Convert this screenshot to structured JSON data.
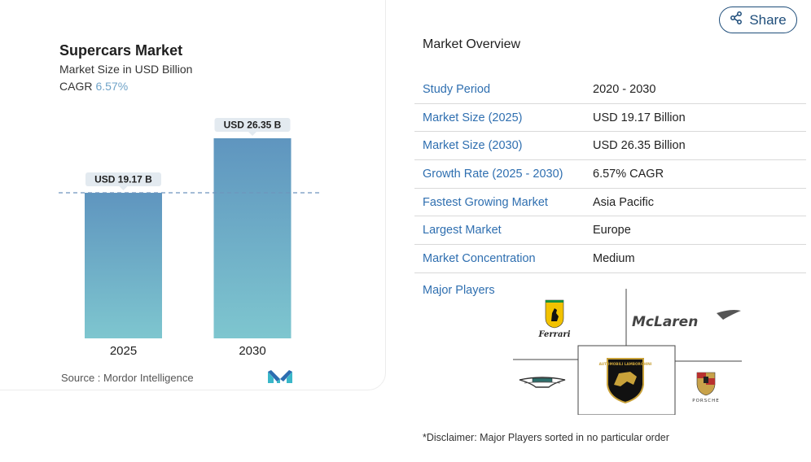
{
  "chart_data": {
    "type": "bar",
    "title": "Supercars Market",
    "subtitle": "Market Size in USD Billion",
    "cagr_label": "CAGR",
    "cagr_value": "6.57%",
    "categories": [
      "2025",
      "2030"
    ],
    "values": [
      19.17,
      26.35
    ],
    "data_labels": [
      "USD 19.17 B",
      "USD 26.35 B"
    ],
    "ylim": [
      0,
      26.35
    ],
    "reference_line_value": 19.17,
    "grid": false,
    "bar_gradient": [
      "#5f95bf",
      "#7ec6cf"
    ],
    "source": "Source :  Mordor Intelligence"
  },
  "share": {
    "label": "Share",
    "icon": "share-icon",
    "color": "#1e4d7a"
  },
  "overview": {
    "title": "Market Overview",
    "rows": [
      {
        "label": "Study Period",
        "value": "2020 - 2030"
      },
      {
        "label": "Market Size (2025)",
        "value": "USD 19.17 Billion"
      },
      {
        "label": "Market Size (2030)",
        "value": "USD 26.35 Billion"
      },
      {
        "label": "Growth Rate (2025 - 2030)",
        "value": "6.57% CAGR"
      },
      {
        "label": "Fastest Growing Market",
        "value": "Asia Pacific"
      },
      {
        "label": "Largest Market",
        "value": "Europe"
      },
      {
        "label": "Market Concentration",
        "value": "Medium"
      }
    ],
    "label_color": "#2f6fb0"
  },
  "major_players": {
    "title": "Major Players",
    "logos": [
      "ferrari-logo",
      "mclaren-logo",
      "aston-martin-logo",
      "lamborghini-logo",
      "porsche-logo"
    ],
    "ferrari_text": "Ferrari",
    "mclaren_text": "McLaren",
    "lamborghini_text": "AUTOMOBILI LAMBORGHINI",
    "porsche_text": "PORSCHE"
  },
  "disclaimer": "*Disclaimer: Major Players sorted in no particular order"
}
